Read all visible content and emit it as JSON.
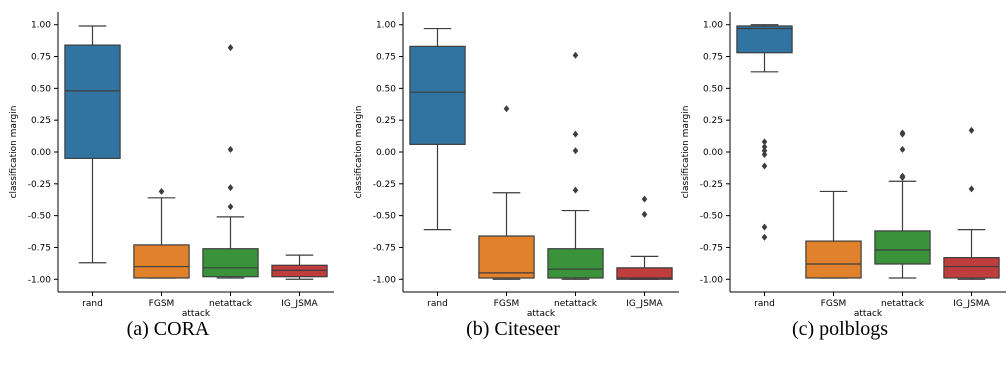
{
  "chart_data": [
    {
      "type": "box",
      "caption": "(a) CORA",
      "xlabel": "attack",
      "ylabel": "classification margin",
      "ylim": [
        -1.1,
        1.1
      ],
      "yticks": [
        "1.00",
        "0.75",
        "0.50",
        "0.25",
        "0.00",
        "-0.25",
        "-0.50",
        "-0.75",
        "-1.00"
      ],
      "ytick_values": [
        1.0,
        0.75,
        0.5,
        0.25,
        0.0,
        -0.25,
        -0.5,
        -0.75,
        -1.0
      ],
      "categories": [
        "rand",
        "FGSM",
        "netattack",
        "IG_JSMA"
      ],
      "colors": [
        "#3274a1",
        "#e1812c",
        "#3a923a",
        "#c03d3e"
      ],
      "boxes": [
        {
          "whislo": -0.87,
          "q1": -0.05,
          "med": 0.48,
          "q3": 0.84,
          "whishi": 0.99,
          "fliers": []
        },
        {
          "whislo": -0.99,
          "q1": -0.99,
          "med": -0.9,
          "q3": -0.73,
          "whishi": -0.36,
          "fliers": [
            -0.31
          ]
        },
        {
          "whislo": -0.99,
          "q1": -0.98,
          "med": -0.91,
          "q3": -0.76,
          "whishi": -0.51,
          "fliers": [
            -0.43,
            -0.28,
            0.02,
            0.82
          ]
        },
        {
          "whislo": -1.0,
          "q1": -0.98,
          "med": -0.93,
          "q3": -0.89,
          "whishi": -0.81,
          "fliers": []
        }
      ]
    },
    {
      "type": "box",
      "caption": "(b) Citeseer",
      "xlabel": "attack",
      "ylabel": "classification margin",
      "ylim": [
        -1.1,
        1.1
      ],
      "yticks": [
        "1.00",
        "0.75",
        "0.50",
        "0.25",
        "0.00",
        "-0.25",
        "-0.50",
        "-0.75",
        "-1.00"
      ],
      "ytick_values": [
        1.0,
        0.75,
        0.5,
        0.25,
        0.0,
        -0.25,
        -0.5,
        -0.75,
        -1.0
      ],
      "categories": [
        "rand",
        "FGSM",
        "netattack",
        "IG_JSMA"
      ],
      "colors": [
        "#3274a1",
        "#e1812c",
        "#3a923a",
        "#c03d3e"
      ],
      "boxes": [
        {
          "whislo": -0.61,
          "q1": 0.06,
          "med": 0.47,
          "q3": 0.83,
          "whishi": 0.97,
          "fliers": []
        },
        {
          "whislo": -1.0,
          "q1": -0.99,
          "med": -0.95,
          "q3": -0.66,
          "whishi": -0.32,
          "fliers": [
            0.34
          ]
        },
        {
          "whislo": -1.0,
          "q1": -0.99,
          "med": -0.92,
          "q3": -0.76,
          "whishi": -0.46,
          "fliers": [
            -0.3,
            0.01,
            0.14,
            0.76
          ]
        },
        {
          "whislo": -1.0,
          "q1": -1.0,
          "med": -0.99,
          "q3": -0.91,
          "whishi": -0.82,
          "fliers": [
            -0.49,
            -0.37
          ]
        }
      ]
    },
    {
      "type": "box",
      "caption": "(c) polblogs",
      "xlabel": "attack",
      "ylabel": "classification margin",
      "ylim": [
        -1.1,
        1.1
      ],
      "yticks": [
        "1.00",
        "0.75",
        "0.50",
        "0.25",
        "0.00",
        "-0.25",
        "-0.50",
        "-0.75",
        "-1.00"
      ],
      "ytick_values": [
        1.0,
        0.75,
        0.5,
        0.25,
        0.0,
        -0.25,
        -0.5,
        -0.75,
        -1.0
      ],
      "categories": [
        "rand",
        "FGSM",
        "netattack",
        "IG_JSMA"
      ],
      "colors": [
        "#3274a1",
        "#e1812c",
        "#3a923a",
        "#c03d3e"
      ],
      "boxes": [
        {
          "whislo": 0.63,
          "q1": 0.78,
          "med": 0.97,
          "q3": 0.99,
          "whishi": 1.0,
          "fliers": [
            -0.67,
            -0.59,
            -0.11,
            -0.02,
            0.01,
            0.04,
            0.08
          ]
        },
        {
          "whislo": -0.99,
          "q1": -0.99,
          "med": -0.88,
          "q3": -0.7,
          "whishi": -0.31,
          "fliers": []
        },
        {
          "whislo": -0.99,
          "q1": -0.88,
          "med": -0.77,
          "q3": -0.62,
          "whishi": -0.23,
          "fliers": [
            -0.2,
            -0.19,
            0.02,
            0.14,
            0.15
          ]
        },
        {
          "whislo": -1.0,
          "q1": -0.99,
          "med": -0.9,
          "q3": -0.83,
          "whishi": -0.61,
          "fliers": [
            -0.29,
            0.17
          ]
        }
      ]
    }
  ]
}
